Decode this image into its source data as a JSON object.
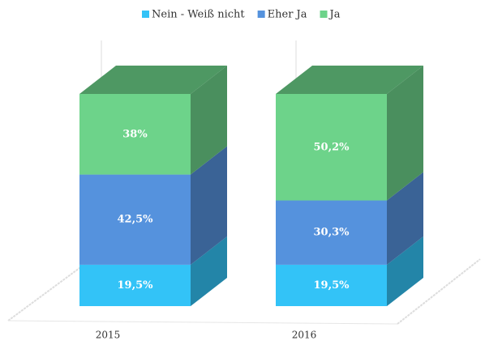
{
  "chart_data": {
    "type": "bar3d_stacked",
    "categories": [
      "2015",
      "2016"
    ],
    "series": [
      {
        "name": "Nein - Weiß nicht",
        "color": "#33c3f7",
        "values": [
          19.5,
          19.5
        ],
        "value_labels": [
          "19,5%",
          "19,5%"
        ]
      },
      {
        "name": "Eher Ja",
        "color": "#5592dd",
        "values": [
          42.5,
          30.3
        ],
        "value_labels": [
          "42,5%",
          "30,3%"
        ]
      },
      {
        "name": "Ja",
        "color": "#6dd38a",
        "values": [
          38,
          50.2
        ],
        "value_labels": [
          "38%",
          "50,2%"
        ]
      }
    ]
  }
}
